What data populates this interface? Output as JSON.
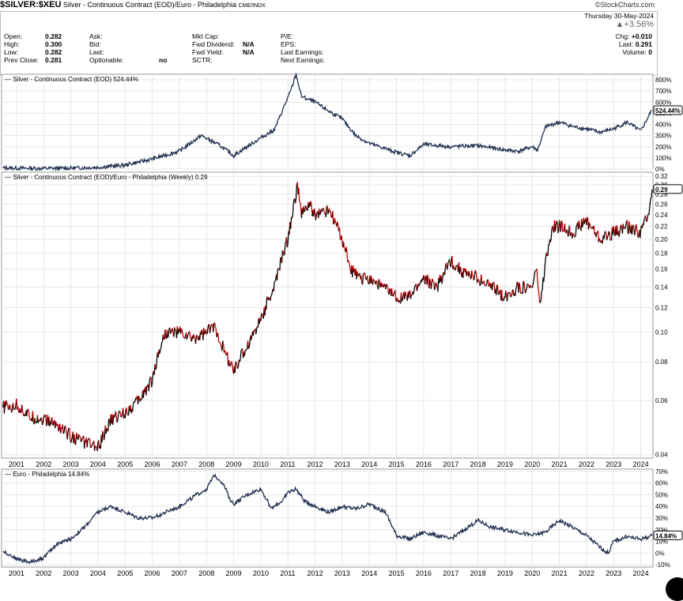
{
  "header": {
    "symbol": "$SILVER:$XEU",
    "description": "Silver - Continuous Contract (EOD)/Euro - Philadelphia",
    "exchange": "CME/INDX",
    "logo": "©StockCharts.com",
    "date": "Thursday  30-May-2024",
    "change_pct": "▲+3.56%",
    "quote_rows": [
      {
        "label": "Open:",
        "value": "0.282"
      },
      {
        "label": "High:",
        "value": "0.300"
      },
      {
        "label": "Low:",
        "value": "0.282"
      },
      {
        "label": "Prev Close:",
        "value": "0.281"
      }
    ],
    "col2": [
      {
        "label": "Ask:",
        "value": ""
      },
      {
        "label": "Bid:",
        "value": ""
      },
      {
        "label": "Last:",
        "value": ""
      },
      {
        "label": "Optionable:",
        "value": "no"
      }
    ],
    "col3": [
      {
        "label": "Mkt Cap:",
        "value": ""
      },
      {
        "label": "Fwd Dividend:",
        "value": "N/A"
      },
      {
        "label": "Fwd Yield:",
        "value": "N/A"
      },
      {
        "label": "SCTR:",
        "value": ""
      }
    ],
    "col4": [
      {
        "label": "P/E:",
        "value": ""
      },
      {
        "label": "EPS:",
        "value": ""
      },
      {
        "label": "Last Earnings:",
        "value": ""
      },
      {
        "label": "Next Earnings:",
        "value": ""
      }
    ],
    "col5": [
      {
        "label": "Chg:",
        "value": "+0.010"
      },
      {
        "label": "Last:",
        "value": "0.291"
      },
      {
        "label": "Volume:",
        "value": "0"
      }
    ]
  },
  "colors": {
    "up": "#000000",
    "down": "#cc0000",
    "line": "#1f2f4f",
    "grid": "#e6e6e6"
  },
  "chart_data": [
    {
      "type": "line",
      "legend": "Silver - Continuous Contract (EOD) 524.44%",
      "x": [
        2000.5,
        2001,
        2002,
        2003,
        2004,
        2005,
        2006,
        2007,
        2007.8,
        2008.5,
        2009,
        2010,
        2010.5,
        2011.1,
        2011.3,
        2011.5,
        2012,
        2012.5,
        2013,
        2013.5,
        2014,
        2015,
        2015.5,
        2016,
        2017,
        2018,
        2019,
        2019.5,
        2020,
        2020.2,
        2020.5,
        2021,
        2021.5,
        2022,
        2022.5,
        2023,
        2023.5,
        2024,
        2024.4
      ],
      "y": [
        10,
        8,
        5,
        8,
        15,
        35,
        90,
        160,
        300,
        210,
        120,
        280,
        350,
        700,
        850,
        650,
        600,
        520,
        450,
        300,
        230,
        150,
        120,
        220,
        200,
        210,
        170,
        160,
        200,
        170,
        380,
        420,
        380,
        360,
        330,
        360,
        420,
        340,
        524
      ],
      "yticks": [
        "0%",
        "100%",
        "200%",
        "300%",
        "400%",
        "500%",
        "600%",
        "700%",
        "800%"
      ],
      "ylim": [
        0,
        850
      ],
      "last_label": "524.44%"
    },
    {
      "type": "line",
      "legend": "Silver - Continuous Contract (EOD)/Euro - Philadelphia (Weekly) 0.29",
      "scale": "log",
      "x": [
        2000.5,
        2001,
        2001.5,
        2002,
        2002.5,
        2003,
        2003.5,
        2004,
        2004.5,
        2005,
        2005.5,
        2006,
        2006.3,
        2006.5,
        2007,
        2007.5,
        2008,
        2008.3,
        2008.7,
        2009,
        2009.5,
        2010,
        2010.5,
        2011,
        2011.2,
        2011.35,
        2011.5,
        2011.8,
        2012,
        2012.5,
        2013,
        2013.3,
        2013.6,
        2014,
        2014.5,
        2015,
        2015.5,
        2016,
        2016.5,
        2017,
        2017.5,
        2018,
        2018.5,
        2019,
        2019.5,
        2020,
        2020.15,
        2020.3,
        2020.5,
        2020.8,
        2021,
        2021.5,
        2022,
        2022.5,
        2023,
        2023.5,
        2024,
        2024.3,
        2024.42
      ],
      "y": [
        0.057,
        0.058,
        0.053,
        0.052,
        0.05,
        0.046,
        0.044,
        0.042,
        0.052,
        0.055,
        0.06,
        0.07,
        0.09,
        0.1,
        0.1,
        0.095,
        0.1,
        0.105,
        0.085,
        0.075,
        0.09,
        0.11,
        0.14,
        0.2,
        0.25,
        0.3,
        0.24,
        0.26,
        0.24,
        0.25,
        0.2,
        0.16,
        0.15,
        0.15,
        0.14,
        0.13,
        0.13,
        0.15,
        0.14,
        0.17,
        0.155,
        0.15,
        0.14,
        0.13,
        0.14,
        0.14,
        0.16,
        0.12,
        0.17,
        0.22,
        0.22,
        0.21,
        0.23,
        0.2,
        0.21,
        0.22,
        0.21,
        0.25,
        0.29
      ],
      "yticks": [
        "0.04",
        "0.06",
        "0.08",
        "0.10",
        "0.12",
        "0.14",
        "0.16",
        "0.18",
        "0.20",
        "0.22",
        "0.24",
        "0.26",
        "0.28",
        "0.30",
        "0.32"
      ],
      "ylim": [
        0.039,
        0.33
      ],
      "last_label": "0.29"
    },
    {
      "type": "line",
      "legend": "Euro - Philadelphia 14.84%",
      "x": [
        2000.5,
        2001,
        2001.5,
        2002,
        2002.5,
        2003,
        2003.5,
        2004,
        2004.5,
        2005,
        2005.5,
        2006,
        2006.5,
        2007,
        2007.5,
        2008,
        2008.3,
        2008.6,
        2008.9,
        2009,
        2009.5,
        2010,
        2010.4,
        2010.8,
        2011,
        2011.3,
        2011.6,
        2012,
        2012.5,
        2013,
        2013.5,
        2014,
        2014.6,
        2015,
        2015.5,
        2016,
        2016.5,
        2017,
        2017.5,
        2018,
        2018.5,
        2019,
        2019.5,
        2020,
        2020.5,
        2021,
        2021.5,
        2022,
        2022.5,
        2022.8,
        2023,
        2023.5,
        2024,
        2024.42
      ],
      "y": [
        2,
        -5,
        -8,
        -4,
        8,
        12,
        22,
        35,
        40,
        35,
        30,
        30,
        35,
        40,
        48,
        55,
        67,
        60,
        45,
        42,
        50,
        55,
        38,
        45,
        52,
        55,
        45,
        40,
        35,
        40,
        38,
        42,
        35,
        15,
        12,
        18,
        15,
        12,
        20,
        28,
        22,
        20,
        18,
        15,
        18,
        28,
        22,
        15,
        5,
        0,
        10,
        14,
        12,
        14.84
      ],
      "yticks": [
        "-10%",
        "0%",
        "10%",
        "20%",
        "30%",
        "40%",
        "50%",
        "60%",
        "70%"
      ],
      "ylim": [
        -12,
        72
      ],
      "last_label": "14.84%"
    }
  ],
  "x_axis": {
    "ticks": [
      "2001",
      "2002",
      "2003",
      "2004",
      "2005",
      "2006",
      "2007",
      "2008",
      "2009",
      "2010",
      "2011",
      "2012",
      "2013",
      "2014",
      "2015",
      "2016",
      "2017",
      "2018",
      "2019",
      "2020",
      "2021",
      "2022",
      "2023",
      "2024"
    ]
  }
}
